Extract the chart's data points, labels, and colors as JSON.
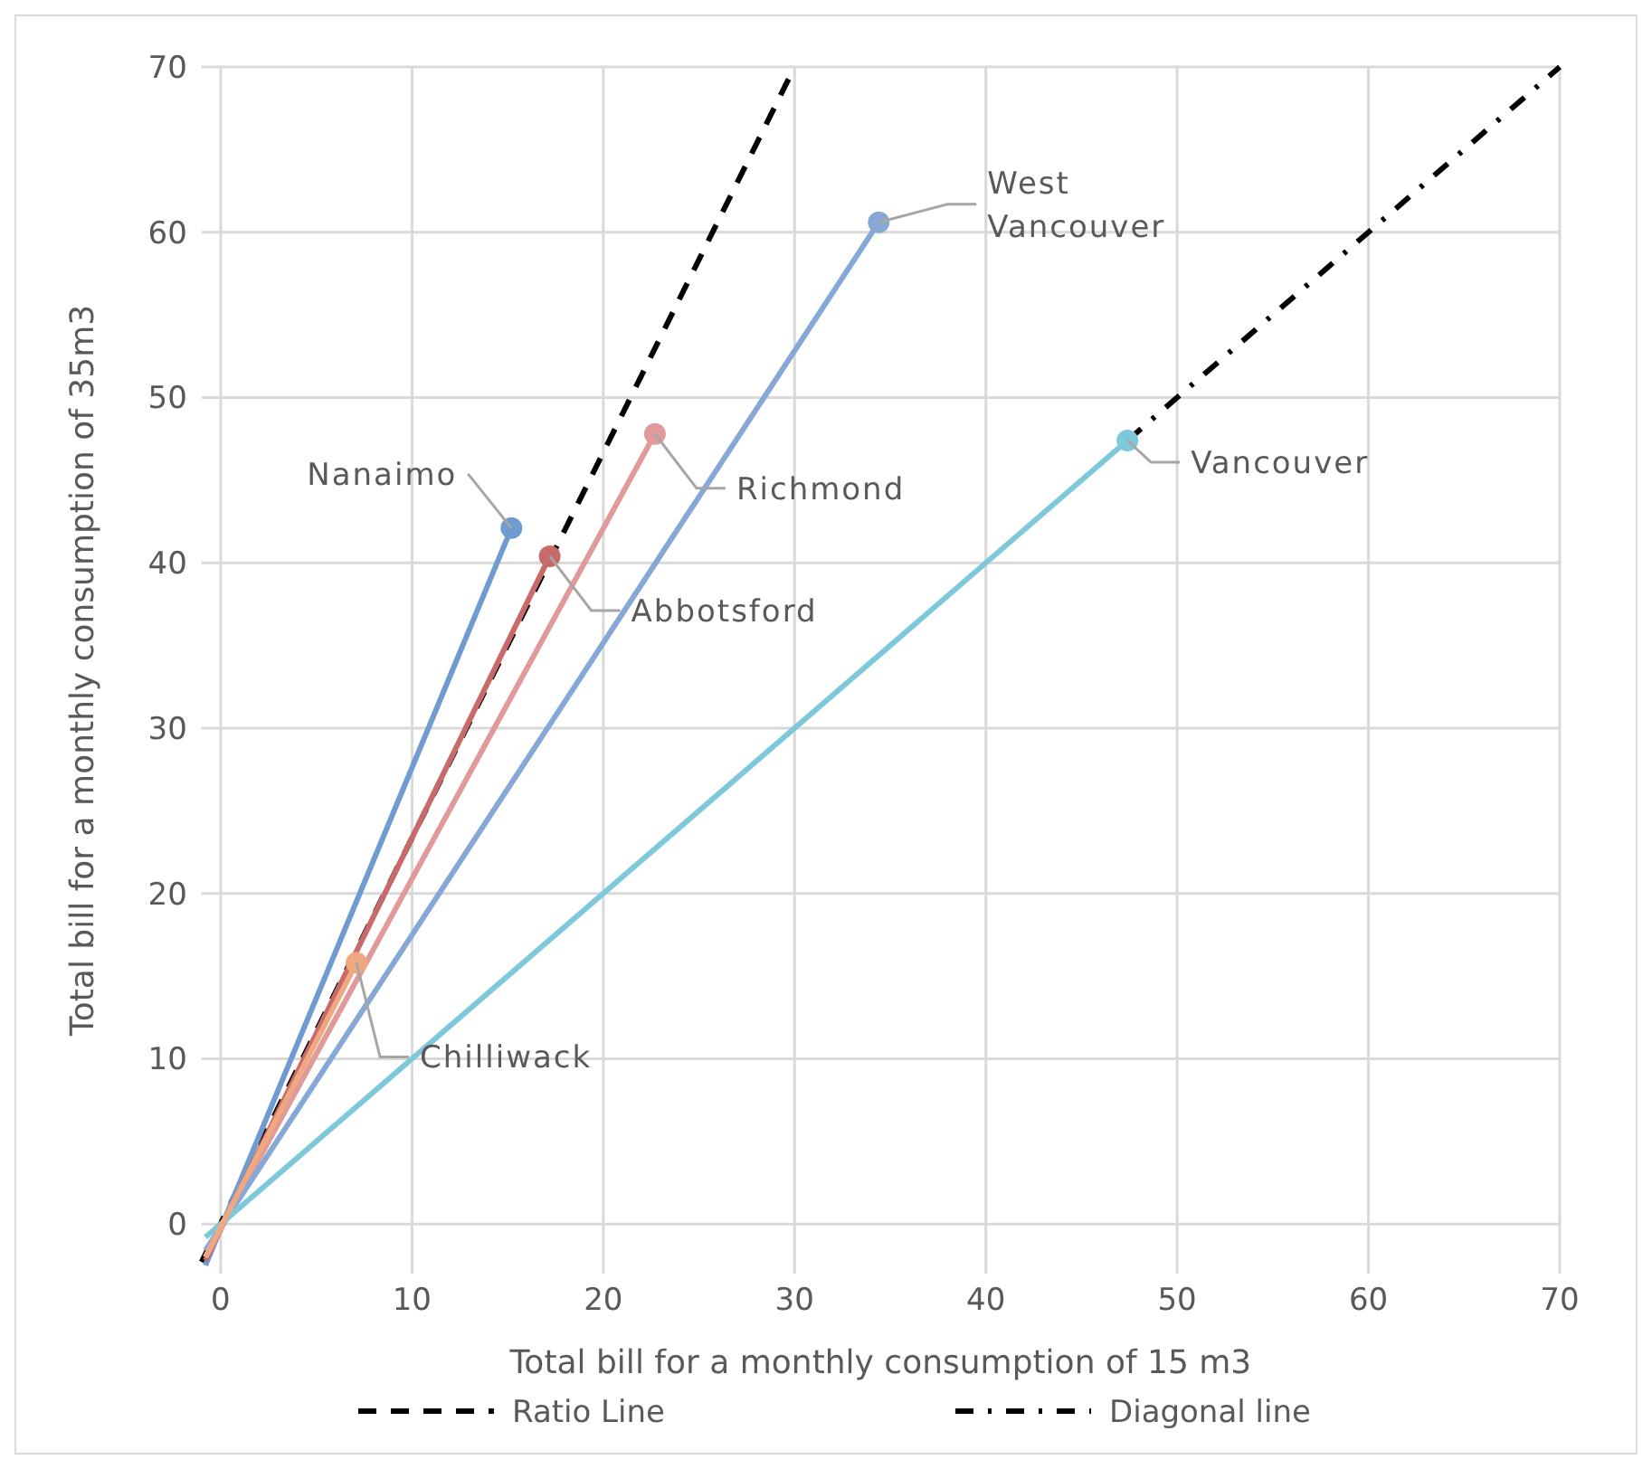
{
  "chart_data": {
    "type": "line",
    "xlabel": "Total bill for a monthly consumption of 15 m3",
    "ylabel": "Total bill for a monthly consumption of 35m3",
    "xlim": [
      -1,
      70
    ],
    "ylim": [
      -3,
      70
    ],
    "xticks": [
      0,
      10,
      20,
      30,
      40,
      50,
      60,
      70
    ],
    "yticks": [
      0,
      10,
      20,
      30,
      40,
      50,
      60,
      70
    ],
    "grid": true,
    "legend": "bottom",
    "series": [
      {
        "name": "Ratio Line",
        "color": "#000000",
        "line_style": "dashed",
        "marker": "none",
        "x": [
          -1,
          30
        ],
        "values": [
          -2.3,
          70
        ]
      },
      {
        "name": "Diagonal line",
        "color": "#000000",
        "line_style": "dashdot",
        "marker": "none",
        "x": [
          47.4,
          70
        ],
        "values": [
          47.4,
          70
        ]
      },
      {
        "color": "#6f9bd1",
        "marker": "none",
        "x": [
          -0.8,
          15.2
        ],
        "values": [
          -2.5,
          42.1
        ]
      },
      {
        "color": "#c96a6a",
        "marker": "none",
        "x": [
          -0.8,
          17.2
        ],
        "values": [
          -2.2,
          40.4
        ]
      },
      {
        "color": "#e09a9a",
        "marker": "none",
        "x": [
          -0.8,
          22.7
        ],
        "values": [
          -2.0,
          47.8
        ]
      },
      {
        "color": "#86a8d6",
        "marker": "none",
        "x": [
          -0.8,
          34.4
        ],
        "values": [
          -1.6,
          60.6
        ]
      },
      {
        "color": "#7ec8dc",
        "marker": "none",
        "x": [
          -0.8,
          47.4
        ],
        "values": [
          -0.8,
          47.4
        ]
      },
      {
        "color": "#f0a880",
        "marker": "none",
        "x": [
          -0.8,
          7.1
        ],
        "values": [
          -2.0,
          15.8
        ]
      },
      {
        "name": "Nanaimo",
        "color": "#6f9bd1",
        "type": "scatter",
        "marker": "circle",
        "x": [
          15.2
        ],
        "values": [
          42.1
        ]
      },
      {
        "name": "Abbotsford",
        "color": "#c96a6a",
        "type": "scatter",
        "marker": "circle",
        "x": [
          17.2
        ],
        "values": [
          40.4
        ]
      },
      {
        "name": "Richmond",
        "color": "#e09a9a",
        "type": "scatter",
        "marker": "circle",
        "x": [
          22.7
        ],
        "values": [
          47.8
        ]
      },
      {
        "name": "West Vancouver",
        "color": "#86a8d6",
        "type": "scatter",
        "marker": "circle",
        "x": [
          34.4
        ],
        "values": [
          60.6
        ]
      },
      {
        "name": "Vancouver",
        "color": "#7ec8dc",
        "type": "scatter",
        "marker": "circle",
        "x": [
          47.4
        ],
        "values": [
          47.4
        ]
      },
      {
        "name": "Chilliwack",
        "color": "#f0a880",
        "type": "scatter",
        "marker": "circle",
        "x": [
          7.1
        ],
        "values": [
          15.8
        ]
      }
    ]
  }
}
